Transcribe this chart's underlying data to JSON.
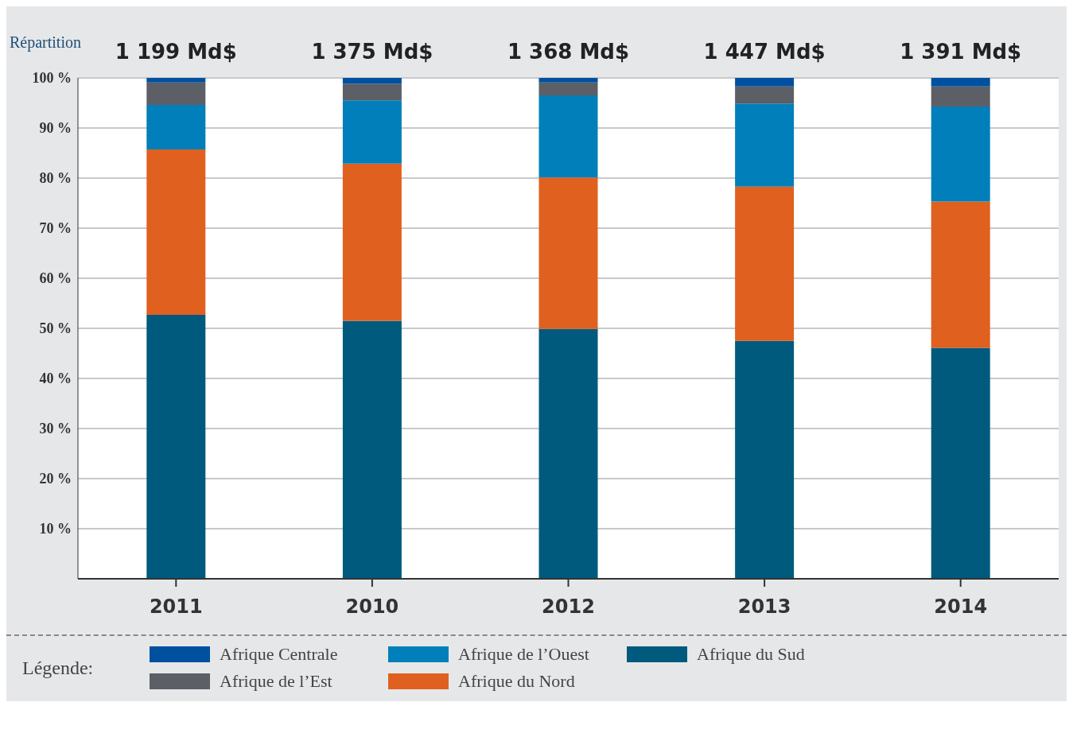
{
  "chart_data": {
    "type": "bar",
    "ylabel": "Répartition",
    "legend_title": "Légende:",
    "categories": [
      "2011",
      "2010",
      "2012",
      "2013",
      "2014"
    ],
    "stacked": true,
    "series": [
      {
        "name": "Afrique du Sud",
        "color": "#005a7d",
        "values": [
          52.7,
          51.5,
          49.9,
          47.5,
          46.1
        ]
      },
      {
        "name": "Afrique du Nord",
        "color": "#e0601f",
        "values": [
          33.0,
          31.4,
          30.2,
          30.8,
          29.2
        ]
      },
      {
        "name": "Afrique de l’Ouest",
        "color": "#007fba",
        "values": [
          8.9,
          12.6,
          16.4,
          16.6,
          19.0
        ]
      },
      {
        "name": "Afrique de l’Est",
        "color": "#5c5f66",
        "values": [
          4.5,
          3.3,
          2.6,
          3.4,
          4.0
        ]
      },
      {
        "name": "Afrique Centrale",
        "color": "#0050a0",
        "values": [
          0.9,
          1.2,
          0.9,
          1.7,
          1.7
        ]
      }
    ],
    "annotations": [
      {
        "text": "1 199 Md$",
        "x": "2011",
        "y": 100
      },
      {
        "text": "1 375 Md$",
        "x": "2010",
        "y": 100
      },
      {
        "text": "1 368 Md$",
        "x": "2012",
        "y": 100
      },
      {
        "text": "1 447 Md$",
        "x": "2013",
        "y": 100
      },
      {
        "text": "1 391 Md$",
        "x": "2014",
        "y": 100
      }
    ],
    "ylim": [
      0,
      100
    ],
    "yticks": [
      {
        "value": 10,
        "label": "10 %"
      },
      {
        "value": 20,
        "label": "20 %"
      },
      {
        "value": 30,
        "label": "30 %"
      },
      {
        "value": 40,
        "label": "40 %"
      },
      {
        "value": 50,
        "label": "50 %"
      },
      {
        "value": 60,
        "label": "60 %"
      },
      {
        "value": 70,
        "label": "70 %"
      },
      {
        "value": 80,
        "label": "80 %"
      },
      {
        "value": 90,
        "label": "90 %"
      },
      {
        "value": 100,
        "label": "100 %"
      }
    ],
    "grid": "y",
    "legend": "bottom"
  }
}
